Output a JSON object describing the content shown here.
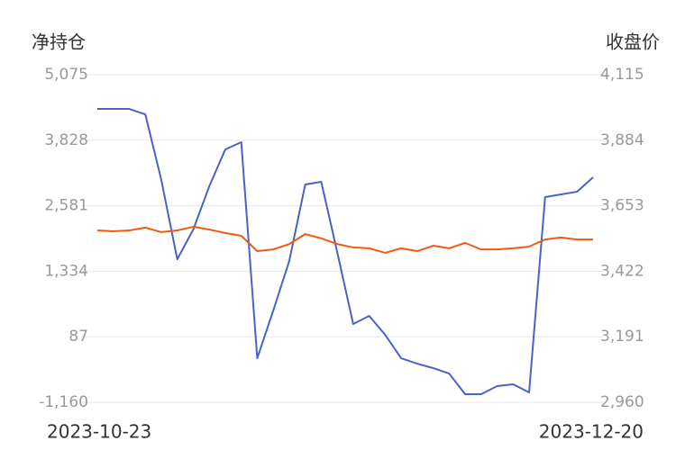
{
  "chart_data": {
    "type": "line",
    "y_label": "净持仓",
    "y2_label": "收盘价",
    "categories": [
      "2023-10-23",
      null,
      null,
      null,
      null,
      null,
      null,
      null,
      null,
      null,
      null,
      null,
      null,
      null,
      null,
      null,
      null,
      null,
      null,
      null,
      null,
      null,
      null,
      null,
      null,
      null,
      null,
      null,
      null,
      null,
      null,
      "2023-12-20"
    ],
    "series": [
      {
        "color": "#4a62c4",
        "values": [
          4424,
          4424,
          4424,
          4321,
          3071,
          1563,
          2129,
          2951,
          3653,
          3790,
          -321,
          587,
          1529,
          2985,
          3037,
          1700,
          330,
          484,
          124,
          -321,
          -424,
          -509,
          -612,
          -1006,
          -1006,
          -852,
          -818,
          -972,
          2745,
          2797,
          2848,
          3122
        ]
      },
      {
        "color": "#f25a11",
        "axis": "y2",
        "values": [
          3566,
          3563,
          3566,
          3576,
          3560,
          3566,
          3579,
          3569,
          3557,
          3547,
          3493,
          3499,
          3518,
          3553,
          3538,
          3518,
          3506,
          3503,
          3487,
          3503,
          3493,
          3512,
          3503,
          3522,
          3499,
          3499,
          3503,
          3509,
          3534,
          3541,
          3534,
          3534
        ]
      }
    ],
    "ylim": [
      -1160,
      5075
    ],
    "yticks": [
      {
        "value": -1160,
        "label": "-1,160"
      },
      87,
      {
        "value": 1334,
        "label": "1,334"
      },
      {
        "value": 2581,
        "label": "2,581"
      },
      {
        "value": 3828,
        "label": "3,828"
      },
      {
        "value": 5075,
        "label": "5,075"
      }
    ],
    "y2lim": [
      2960,
      4115
    ],
    "y2ticks": [
      {
        "value": 2960,
        "label": "2,960"
      },
      {
        "value": 3191,
        "label": "3,191"
      },
      {
        "value": 3422,
        "label": "3,422"
      },
      {
        "value": 3653,
        "label": "3,653"
      },
      {
        "value": 3884,
        "label": "3,884"
      },
      {
        "value": 4115,
        "label": "4,115"
      }
    ],
    "grid": true
  }
}
